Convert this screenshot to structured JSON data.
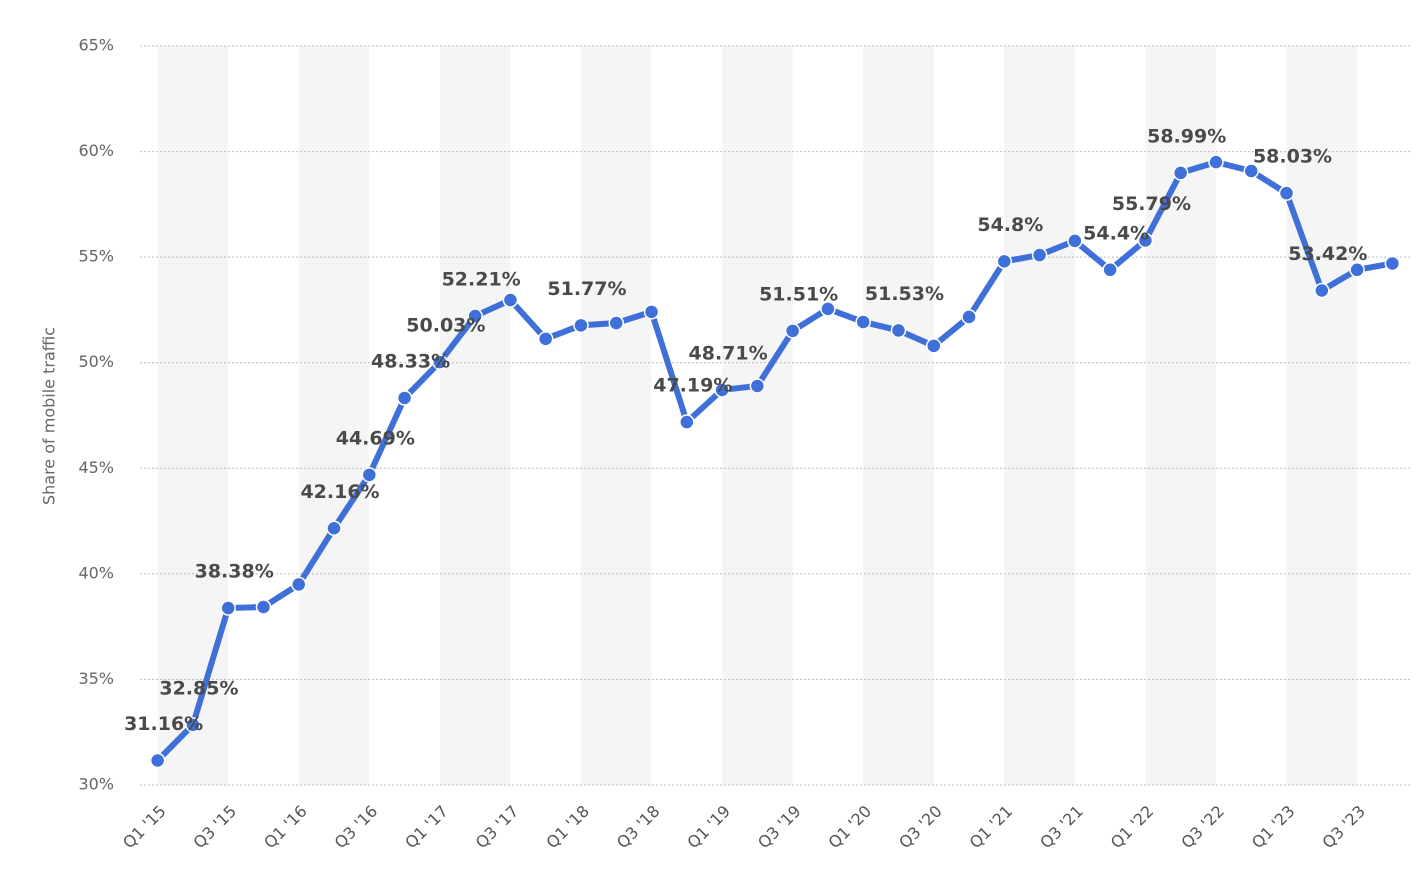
{
  "chart_data": {
    "type": "line",
    "y_label": "Share of mobile traffic",
    "categories": [
      "Q1 '15",
      null,
      "Q3 '15",
      null,
      "Q1 '16",
      null,
      "Q3 '16",
      null,
      "Q1 '17",
      null,
      "Q3 '17",
      null,
      "Q1 '18",
      null,
      "Q3 '18",
      null,
      "Q1 '19",
      null,
      "Q3 '19",
      null,
      "Q1 '20",
      null,
      "Q3 '20",
      null,
      "Q1 '21",
      null,
      "Q3 '21",
      null,
      "Q1 '22",
      null,
      "Q3 '22",
      null,
      "Q1 '23",
      null,
      "Q3 '23",
      null
    ],
    "series": [
      {
        "name": "Share of mobile traffic",
        "color": "#3f6fd8",
        "values": [
          31.16,
          32.85,
          38.38,
          38.43,
          39.5,
          42.16,
          44.69,
          48.33,
          50.03,
          52.21,
          52.97,
          51.13,
          51.77,
          51.88,
          52.41,
          47.19,
          48.71,
          48.9,
          51.51,
          52.55,
          51.93,
          51.53,
          50.8,
          52.17,
          54.8,
          55.1,
          55.77,
          54.4,
          55.79,
          58.99,
          59.5,
          59.08,
          58.03,
          53.42,
          54.4,
          54.7
        ],
        "value_labels": [
          "31.16%",
          "32.85%",
          "38.38%",
          null,
          null,
          "42.16%",
          "44.69%",
          "48.33%",
          "50.03%",
          "52.21%",
          null,
          null,
          "51.77%",
          null,
          null,
          "47.19%",
          "48.71%",
          null,
          "51.51%",
          null,
          null,
          "51.53%",
          null,
          null,
          "54.8%",
          null,
          null,
          "54.4%",
          "55.79%",
          "58.99%",
          null,
          null,
          "58.03%",
          "53.42%",
          null,
          null
        ]
      }
    ],
    "ylim": [
      30,
      65
    ],
    "yticks": [
      {
        "value": 30,
        "label": "30%"
      },
      {
        "value": 35,
        "label": "35%"
      },
      {
        "value": 40,
        "label": "40%"
      },
      {
        "value": 45,
        "label": "45%"
      },
      {
        "value": 50,
        "label": "50%"
      },
      {
        "value": 55,
        "label": "55%"
      },
      {
        "value": 60,
        "label": "60%"
      },
      {
        "value": 65,
        "label": "65%"
      }
    ],
    "grid": true
  }
}
